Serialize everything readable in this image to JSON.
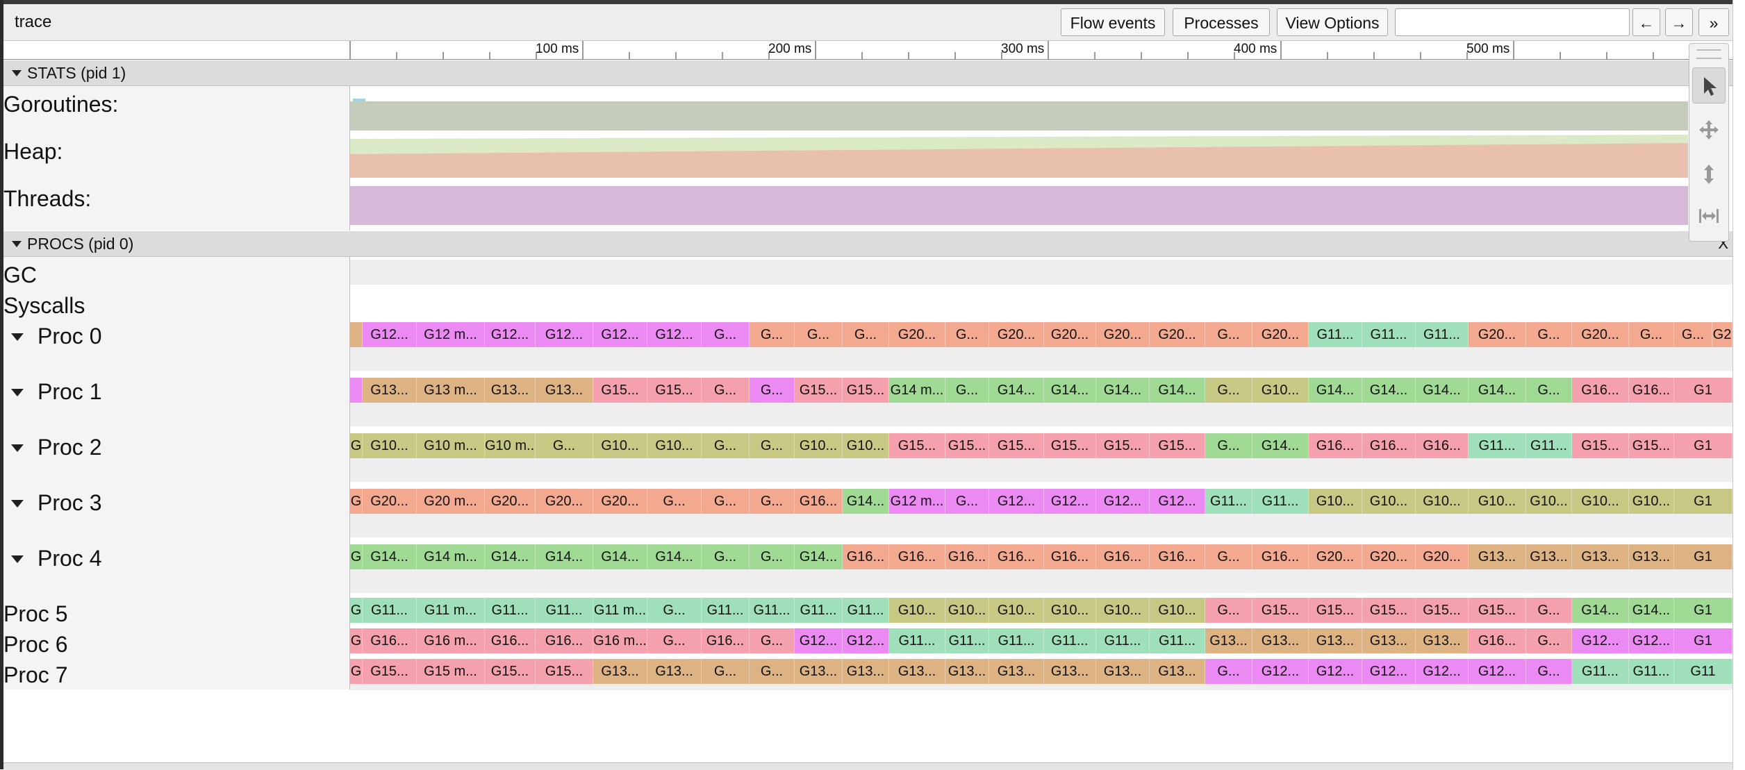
{
  "window": {
    "title": "trace"
  },
  "toolbar": {
    "flow_events_label": "Flow events",
    "processes_label": "Processes",
    "view_options_label": "View Options",
    "search_value": "",
    "prev_label": "←",
    "next_label": "→",
    "more_label": "»"
  },
  "ruler": {
    "ticks": [
      "100 ms",
      "200 ms",
      "300 ms",
      "400 ms",
      "500 ms"
    ]
  },
  "stats": {
    "header": "STATS (pid 1)",
    "counters": [
      "Goroutines:",
      "Heap:",
      "Threads:"
    ]
  },
  "procs": {
    "header": "PROCS (pid 0)",
    "close_label": "X",
    "tracks": [
      "GC",
      "Syscalls",
      "Proc 0",
      "Proc 1",
      "Proc 2",
      "Proc 3",
      "Proc 4",
      "Proc 5",
      "Proc 6",
      "Proc 7"
    ]
  },
  "colors": {
    "magenta": "#ec8af3",
    "salmon": "#f2a98f",
    "tan": "#ddb384",
    "green": "#9fd994",
    "mint": "#9fe0ba",
    "olive": "#c8c885",
    "pink": "#f5a1ad",
    "goroutines": "#c3cbbb",
    "heap_top": "#dbe9c6",
    "heap": "#e9c0ad",
    "threads": "#d6b9d9"
  },
  "slices": {
    "proc0": [
      {
        "t": "",
        "c": "tan",
        "w": 18
      },
      {
        "t": "G12...",
        "c": "magenta",
        "w": 79
      },
      {
        "t": "G12 m...",
        "c": "magenta",
        "w": 99
      },
      {
        "t": "G12...",
        "c": "magenta",
        "w": 74
      },
      {
        "t": "G12...",
        "c": "magenta",
        "w": 84
      },
      {
        "t": "G12...",
        "c": "magenta",
        "w": 79
      },
      {
        "t": "G12...",
        "c": "magenta",
        "w": 79
      },
      {
        "t": "G...",
        "c": "magenta",
        "w": 70
      },
      {
        "t": "G...",
        "c": "salmon",
        "w": 66
      },
      {
        "t": "G...",
        "c": "salmon",
        "w": 70
      },
      {
        "t": "G...",
        "c": "salmon",
        "w": 68
      },
      {
        "t": "G20...",
        "c": "salmon",
        "w": 82
      },
      {
        "t": "G...",
        "c": "salmon",
        "w": 64
      },
      {
        "t": "G20...",
        "c": "salmon",
        "w": 80
      },
      {
        "t": "G20...",
        "c": "salmon",
        "w": 76
      },
      {
        "t": "G20...",
        "c": "salmon",
        "w": 78
      },
      {
        "t": "G20...",
        "c": "salmon",
        "w": 81
      },
      {
        "t": "G...",
        "c": "salmon",
        "w": 69
      },
      {
        "t": "G20...",
        "c": "salmon",
        "w": 82
      },
      {
        "t": "G11...",
        "c": "mint",
        "w": 78
      },
      {
        "t": "G11...",
        "c": "mint",
        "w": 78
      },
      {
        "t": "G11...",
        "c": "mint",
        "w": 77
      },
      {
        "t": "G20...",
        "c": "salmon",
        "w": 84
      },
      {
        "t": "G...",
        "c": "salmon",
        "w": 67
      },
      {
        "t": "G20...",
        "c": "salmon",
        "w": 83
      },
      {
        "t": "G...",
        "c": "salmon",
        "w": 66
      },
      {
        "t": "G...",
        "c": "salmon",
        "w": 56
      },
      {
        "t": "G2",
        "c": "salmon",
        "w": 32
      }
    ],
    "proc1": [
      {
        "t": "",
        "c": "magenta",
        "w": 18
      },
      {
        "t": "G13...",
        "c": "tan",
        "w": 79
      },
      {
        "t": "G13 m...",
        "c": "tan",
        "w": 99
      },
      {
        "t": "G13...",
        "c": "tan",
        "w": 74
      },
      {
        "t": "G13...",
        "c": "tan",
        "w": 84
      },
      {
        "t": "G15...",
        "c": "pink",
        "w": 79
      },
      {
        "t": "G15...",
        "c": "pink",
        "w": 79
      },
      {
        "t": "G...",
        "c": "pink",
        "w": 70
      },
      {
        "t": "G...",
        "c": "magenta",
        "w": 66
      },
      {
        "t": "G15...",
        "c": "pink",
        "w": 70
      },
      {
        "t": "G15...",
        "c": "pink",
        "w": 68
      },
      {
        "t": "G14 m...",
        "c": "green",
        "w": 82
      },
      {
        "t": "G...",
        "c": "green",
        "w": 64
      },
      {
        "t": "G14...",
        "c": "green",
        "w": 80
      },
      {
        "t": "G14...",
        "c": "green",
        "w": 76
      },
      {
        "t": "G14...",
        "c": "green",
        "w": 78
      },
      {
        "t": "G14...",
        "c": "green",
        "w": 81
      },
      {
        "t": "G...",
        "c": "olive",
        "w": 69
      },
      {
        "t": "G10...",
        "c": "olive",
        "w": 82
      },
      {
        "t": "G14...",
        "c": "green",
        "w": 78
      },
      {
        "t": "G14...",
        "c": "green",
        "w": 78
      },
      {
        "t": "G14...",
        "c": "green",
        "w": 77
      },
      {
        "t": "G14...",
        "c": "green",
        "w": 84
      },
      {
        "t": "G...",
        "c": "green",
        "w": 67
      },
      {
        "t": "G16...",
        "c": "pink",
        "w": 83
      },
      {
        "t": "G16...",
        "c": "pink",
        "w": 66
      },
      {
        "t": "G1",
        "c": "pink",
        "w": 88
      }
    ],
    "proc2": [
      {
        "t": "G",
        "c": "olive",
        "w": 18
      },
      {
        "t": "G10...",
        "c": "olive",
        "w": 79
      },
      {
        "t": "G10 m...",
        "c": "olive",
        "w": 99
      },
      {
        "t": "G10 m...",
        "c": "olive",
        "w": 74
      },
      {
        "t": "G...",
        "c": "olive",
        "w": 84
      },
      {
        "t": "G10...",
        "c": "olive",
        "w": 79
      },
      {
        "t": "G10...",
        "c": "olive",
        "w": 79
      },
      {
        "t": "G...",
        "c": "olive",
        "w": 70
      },
      {
        "t": "G...",
        "c": "olive",
        "w": 66
      },
      {
        "t": "G10...",
        "c": "olive",
        "w": 70
      },
      {
        "t": "G10...",
        "c": "olive",
        "w": 68
      },
      {
        "t": "G15...",
        "c": "pink",
        "w": 82
      },
      {
        "t": "G15...",
        "c": "pink",
        "w": 64
      },
      {
        "t": "G15...",
        "c": "pink",
        "w": 80
      },
      {
        "t": "G15...",
        "c": "pink",
        "w": 76
      },
      {
        "t": "G15...",
        "c": "pink",
        "w": 78
      },
      {
        "t": "G15...",
        "c": "pink",
        "w": 81
      },
      {
        "t": "G...",
        "c": "green",
        "w": 69
      },
      {
        "t": "G14...",
        "c": "green",
        "w": 82
      },
      {
        "t": "G16...",
        "c": "pink",
        "w": 78
      },
      {
        "t": "G16...",
        "c": "pink",
        "w": 78
      },
      {
        "t": "G16...",
        "c": "pink",
        "w": 77
      },
      {
        "t": "G11...",
        "c": "mint",
        "w": 84
      },
      {
        "t": "G11...",
        "c": "mint",
        "w": 67
      },
      {
        "t": "G15...",
        "c": "pink",
        "w": 83
      },
      {
        "t": "G15...",
        "c": "pink",
        "w": 66
      },
      {
        "t": "G1",
        "c": "pink",
        "w": 88
      }
    ],
    "proc3": [
      {
        "t": "G",
        "c": "salmon",
        "w": 18
      },
      {
        "t": "G20...",
        "c": "salmon",
        "w": 79
      },
      {
        "t": "G20 m...",
        "c": "salmon",
        "w": 99
      },
      {
        "t": "G20...",
        "c": "salmon",
        "w": 74
      },
      {
        "t": "G20...",
        "c": "salmon",
        "w": 84
      },
      {
        "t": "G20...",
        "c": "salmon",
        "w": 79
      },
      {
        "t": "G...",
        "c": "salmon",
        "w": 79
      },
      {
        "t": "G...",
        "c": "salmon",
        "w": 70
      },
      {
        "t": "G...",
        "c": "salmon",
        "w": 66
      },
      {
        "t": "G16...",
        "c": "salmon",
        "w": 70
      },
      {
        "t": "G14...",
        "c": "green",
        "w": 68
      },
      {
        "t": "G12 m...",
        "c": "magenta",
        "w": 82
      },
      {
        "t": "G...",
        "c": "magenta",
        "w": 64
      },
      {
        "t": "G12...",
        "c": "magenta",
        "w": 80
      },
      {
        "t": "G12...",
        "c": "magenta",
        "w": 76
      },
      {
        "t": "G12...",
        "c": "magenta",
        "w": 78
      },
      {
        "t": "G12...",
        "c": "magenta",
        "w": 81
      },
      {
        "t": "G11...",
        "c": "mint",
        "w": 69
      },
      {
        "t": "G11...",
        "c": "mint",
        "w": 82
      },
      {
        "t": "G10...",
        "c": "olive",
        "w": 78
      },
      {
        "t": "G10...",
        "c": "olive",
        "w": 78
      },
      {
        "t": "G10...",
        "c": "olive",
        "w": 77
      },
      {
        "t": "G10...",
        "c": "olive",
        "w": 84
      },
      {
        "t": "G10...",
        "c": "olive",
        "w": 67
      },
      {
        "t": "G10...",
        "c": "olive",
        "w": 83
      },
      {
        "t": "G10...",
        "c": "olive",
        "w": 66
      },
      {
        "t": "G1",
        "c": "olive",
        "w": 88
      }
    ],
    "proc4": [
      {
        "t": "G",
        "c": "green",
        "w": 18
      },
      {
        "t": "G14...",
        "c": "green",
        "w": 79
      },
      {
        "t": "G14 m...",
        "c": "green",
        "w": 99
      },
      {
        "t": "G14...",
        "c": "green",
        "w": 74
      },
      {
        "t": "G14...",
        "c": "green",
        "w": 84
      },
      {
        "t": "G14...",
        "c": "green",
        "w": 79
      },
      {
        "t": "G14...",
        "c": "green",
        "w": 79
      },
      {
        "t": "G...",
        "c": "green",
        "w": 70
      },
      {
        "t": "G...",
        "c": "green",
        "w": 66
      },
      {
        "t": "G14...",
        "c": "green",
        "w": 70
      },
      {
        "t": "G16...",
        "c": "salmon",
        "w": 68
      },
      {
        "t": "G16...",
        "c": "salmon",
        "w": 82
      },
      {
        "t": "G16...",
        "c": "salmon",
        "w": 64
      },
      {
        "t": "G16...",
        "c": "salmon",
        "w": 80
      },
      {
        "t": "G16...",
        "c": "salmon",
        "w": 76
      },
      {
        "t": "G16...",
        "c": "salmon",
        "w": 78
      },
      {
        "t": "G16...",
        "c": "salmon",
        "w": 81
      },
      {
        "t": "G...",
        "c": "salmon",
        "w": 69
      },
      {
        "t": "G16...",
        "c": "salmon",
        "w": 82
      },
      {
        "t": "G20...",
        "c": "salmon",
        "w": 78
      },
      {
        "t": "G20...",
        "c": "salmon",
        "w": 78
      },
      {
        "t": "G20...",
        "c": "salmon",
        "w": 77
      },
      {
        "t": "G13...",
        "c": "tan",
        "w": 84
      },
      {
        "t": "G13...",
        "c": "tan",
        "w": 67
      },
      {
        "t": "G13...",
        "c": "tan",
        "w": 83
      },
      {
        "t": "G13...",
        "c": "tan",
        "w": 66
      },
      {
        "t": "G1",
        "c": "tan",
        "w": 88
      }
    ],
    "proc5": [
      {
        "t": "G",
        "c": "mint",
        "w": 18
      },
      {
        "t": "G11...",
        "c": "mint",
        "w": 79
      },
      {
        "t": "G11 m...",
        "c": "mint",
        "w": 99
      },
      {
        "t": "G11...",
        "c": "mint",
        "w": 74
      },
      {
        "t": "G11...",
        "c": "mint",
        "w": 84
      },
      {
        "t": "G11 m...",
        "c": "mint",
        "w": 79
      },
      {
        "t": "G...",
        "c": "mint",
        "w": 79
      },
      {
        "t": "G11...",
        "c": "mint",
        "w": 70
      },
      {
        "t": "G11...",
        "c": "mint",
        "w": 66
      },
      {
        "t": "G11...",
        "c": "mint",
        "w": 70
      },
      {
        "t": "G11...",
        "c": "mint",
        "w": 68
      },
      {
        "t": "G10...",
        "c": "olive",
        "w": 82
      },
      {
        "t": "G10...",
        "c": "olive",
        "w": 64
      },
      {
        "t": "G10...",
        "c": "olive",
        "w": 80
      },
      {
        "t": "G10...",
        "c": "olive",
        "w": 76
      },
      {
        "t": "G10...",
        "c": "olive",
        "w": 78
      },
      {
        "t": "G10...",
        "c": "olive",
        "w": 81
      },
      {
        "t": "G...",
        "c": "pink",
        "w": 69
      },
      {
        "t": "G15...",
        "c": "pink",
        "w": 82
      },
      {
        "t": "G15...",
        "c": "pink",
        "w": 78
      },
      {
        "t": "G15...",
        "c": "pink",
        "w": 78
      },
      {
        "t": "G15...",
        "c": "pink",
        "w": 77
      },
      {
        "t": "G15...",
        "c": "pink",
        "w": 84
      },
      {
        "t": "G...",
        "c": "pink",
        "w": 67
      },
      {
        "t": "G14...",
        "c": "green",
        "w": 83
      },
      {
        "t": "G14...",
        "c": "green",
        "w": 66
      },
      {
        "t": "G1",
        "c": "green",
        "w": 88
      }
    ],
    "proc6": [
      {
        "t": "G",
        "c": "pink",
        "w": 18
      },
      {
        "t": "G16...",
        "c": "pink",
        "w": 79
      },
      {
        "t": "G16 m...",
        "c": "pink",
        "w": 99
      },
      {
        "t": "G16...",
        "c": "pink",
        "w": 74
      },
      {
        "t": "G16...",
        "c": "pink",
        "w": 84
      },
      {
        "t": "G16 m...",
        "c": "pink",
        "w": 79
      },
      {
        "t": "G...",
        "c": "pink",
        "w": 79
      },
      {
        "t": "G16...",
        "c": "pink",
        "w": 70
      },
      {
        "t": "G...",
        "c": "pink",
        "w": 66
      },
      {
        "t": "G12...",
        "c": "magenta",
        "w": 70
      },
      {
        "t": "G12...",
        "c": "magenta",
        "w": 68
      },
      {
        "t": "G11...",
        "c": "mint",
        "w": 82
      },
      {
        "t": "G11...",
        "c": "mint",
        "w": 64
      },
      {
        "t": "G11...",
        "c": "mint",
        "w": 80
      },
      {
        "t": "G11...",
        "c": "mint",
        "w": 76
      },
      {
        "t": "G11...",
        "c": "mint",
        "w": 78
      },
      {
        "t": "G11...",
        "c": "mint",
        "w": 81
      },
      {
        "t": "G13...",
        "c": "tan",
        "w": 69
      },
      {
        "t": "G13...",
        "c": "tan",
        "w": 82
      },
      {
        "t": "G13...",
        "c": "tan",
        "w": 78
      },
      {
        "t": "G13...",
        "c": "tan",
        "w": 78
      },
      {
        "t": "G13...",
        "c": "tan",
        "w": 77
      },
      {
        "t": "G16...",
        "c": "pink",
        "w": 84
      },
      {
        "t": "G...",
        "c": "pink",
        "w": 67
      },
      {
        "t": "G12...",
        "c": "magenta",
        "w": 83
      },
      {
        "t": "G12...",
        "c": "magenta",
        "w": 66
      },
      {
        "t": "G1",
        "c": "magenta",
        "w": 88
      }
    ],
    "proc7": [
      {
        "t": "G",
        "c": "pink",
        "w": 18
      },
      {
        "t": "G15...",
        "c": "pink",
        "w": 79
      },
      {
        "t": "G15 m...",
        "c": "pink",
        "w": 99
      },
      {
        "t": "G15...",
        "c": "pink",
        "w": 74
      },
      {
        "t": "G15...",
        "c": "pink",
        "w": 84
      },
      {
        "t": "G13...",
        "c": "tan",
        "w": 79
      },
      {
        "t": "G13...",
        "c": "tan",
        "w": 79
      },
      {
        "t": "G...",
        "c": "tan",
        "w": 70
      },
      {
        "t": "G...",
        "c": "tan",
        "w": 66
      },
      {
        "t": "G13...",
        "c": "tan",
        "w": 70
      },
      {
        "t": "G13...",
        "c": "tan",
        "w": 68
      },
      {
        "t": "G13...",
        "c": "tan",
        "w": 82
      },
      {
        "t": "G13...",
        "c": "tan",
        "w": 64
      },
      {
        "t": "G13...",
        "c": "tan",
        "w": 80
      },
      {
        "t": "G13...",
        "c": "tan",
        "w": 76
      },
      {
        "t": "G13...",
        "c": "tan",
        "w": 78
      },
      {
        "t": "G13...",
        "c": "tan",
        "w": 81
      },
      {
        "t": "G...",
        "c": "magenta",
        "w": 69
      },
      {
        "t": "G12...",
        "c": "magenta",
        "w": 82
      },
      {
        "t": "G12...",
        "c": "magenta",
        "w": 78
      },
      {
        "t": "G12...",
        "c": "magenta",
        "w": 78
      },
      {
        "t": "G12...",
        "c": "magenta",
        "w": 77
      },
      {
        "t": "G12...",
        "c": "magenta",
        "w": 84
      },
      {
        "t": "G...",
        "c": "magenta",
        "w": 67
      },
      {
        "t": "G11...",
        "c": "mint",
        "w": 83
      },
      {
        "t": "G11...",
        "c": "mint",
        "w": 66
      },
      {
        "t": "G11",
        "c": "mint",
        "w": 88
      }
    ]
  },
  "tools": [
    "select-tool-icon",
    "pan-tool-icon",
    "zoom-tool-icon",
    "timing-tool-icon"
  ]
}
